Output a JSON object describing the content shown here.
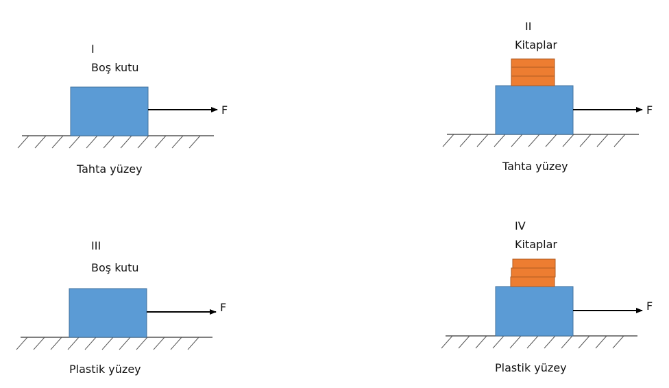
{
  "colors": {
    "box": "#5b9bd5",
    "box_border": "#41719c",
    "books": "#ed7d31",
    "books_border": "#ae5a21",
    "ground": "#555555",
    "arrow": "#000000"
  },
  "panels": [
    {
      "roman": "I",
      "load": "Boş kutu",
      "force": "F",
      "surface": "Tahta yüzey",
      "has_books": false
    },
    {
      "roman": "II",
      "load": "Kitaplar",
      "force": "F",
      "surface": "Tahta yüzey",
      "has_books": true
    },
    {
      "roman": "III",
      "load": "Boş kutu",
      "force": "F",
      "surface": "Plastik yüzey",
      "has_books": false
    },
    {
      "roman": "IV",
      "load": "Kitaplar",
      "force": "F",
      "surface": "Plastik yüzey",
      "has_books": true
    }
  ]
}
